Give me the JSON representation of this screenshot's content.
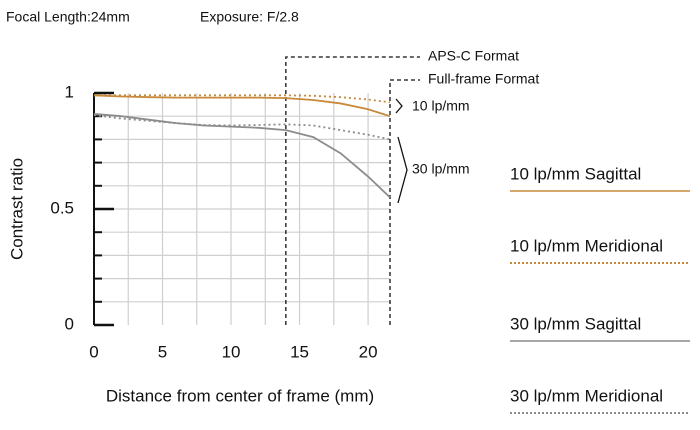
{
  "header": {
    "focal_length": "Focal Length:24mm",
    "exposure": "Exposure: F/2.8"
  },
  "chart_data": {
    "type": "line",
    "xlabel": "Distance from center of frame (mm)",
    "ylabel": "Contrast ratio",
    "x": [
      0,
      2,
      4,
      6,
      8,
      10,
      12,
      14,
      16,
      18,
      20,
      21.6
    ],
    "series": [
      {
        "name": "10 lp/mm Sagittal",
        "color": "#c8893a",
        "dash": "solid",
        "values": [
          0.99,
          0.985,
          0.982,
          0.98,
          0.98,
          0.98,
          0.98,
          0.978,
          0.97,
          0.955,
          0.93,
          0.9
        ]
      },
      {
        "name": "10 lp/mm Meridional",
        "color": "#c8893a",
        "dash": "dotted",
        "values": [
          0.99,
          0.99,
          0.99,
          0.99,
          0.99,
          0.99,
          0.99,
          0.99,
          0.988,
          0.982,
          0.972,
          0.96
        ]
      },
      {
        "name": "30 lp/mm Sagittal",
        "color": "#8c8c8c",
        "dash": "solid",
        "values": [
          0.91,
          0.9,
          0.885,
          0.87,
          0.86,
          0.855,
          0.85,
          0.84,
          0.81,
          0.74,
          0.64,
          0.55
        ]
      },
      {
        "name": "30 lp/mm Meridional",
        "color": "#8c8c8c",
        "dash": "dotted",
        "values": [
          0.905,
          0.89,
          0.88,
          0.87,
          0.862,
          0.86,
          0.862,
          0.865,
          0.86,
          0.84,
          0.82,
          0.8
        ]
      }
    ],
    "xlim": [
      0,
      21.6
    ],
    "ylim": [
      0,
      1
    ],
    "xticks": [
      0,
      5,
      10,
      15,
      20
    ],
    "yticks": [
      0,
      0.5,
      1
    ],
    "xgrid": [
      2.5,
      5,
      7.5,
      10,
      12.5,
      15,
      17.5,
      20
    ],
    "ygrid": [
      0.1,
      0.2,
      0.3,
      0.4,
      0.5,
      0.6,
      0.7,
      0.8,
      0.9
    ],
    "format_lines": [
      {
        "x": 14,
        "label": "APS-C Format"
      },
      {
        "x": 21.6,
        "label": "Full-frame Format"
      }
    ],
    "group_labels": [
      "10 lp/mm",
      "30 lp/mm"
    ]
  }
}
